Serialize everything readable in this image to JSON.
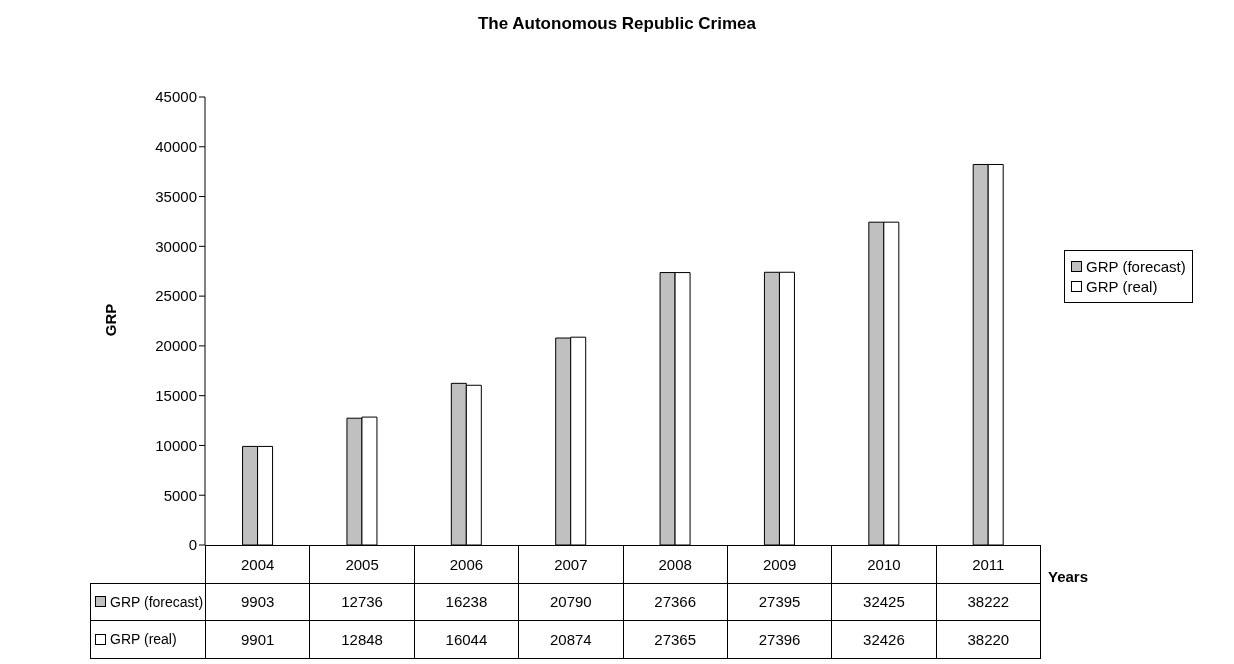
{
  "chart_data": {
    "type": "bar",
    "title": "The Autonomous Republic Crimea",
    "xlabel": "Years",
    "ylabel": "GRP",
    "categories": [
      "2004",
      "2005",
      "2006",
      "2007",
      "2008",
      "2009",
      "2010",
      "2011"
    ],
    "series": [
      {
        "name": "GRP (forecast)",
        "color": "#c0c0c0",
        "values": [
          9903,
          12736,
          16238,
          20790,
          27366,
          27395,
          32425,
          38222
        ]
      },
      {
        "name": "GRP (real)",
        "color": "#ffffff",
        "values": [
          9901,
          12848,
          16044,
          20874,
          27365,
          27396,
          32426,
          38220
        ]
      }
    ],
    "ylim": [
      0,
      45000
    ],
    "yticks": [
      0,
      5000,
      10000,
      15000,
      20000,
      25000,
      30000,
      35000,
      40000,
      45000
    ],
    "legend": "right",
    "data_labels": true
  }
}
